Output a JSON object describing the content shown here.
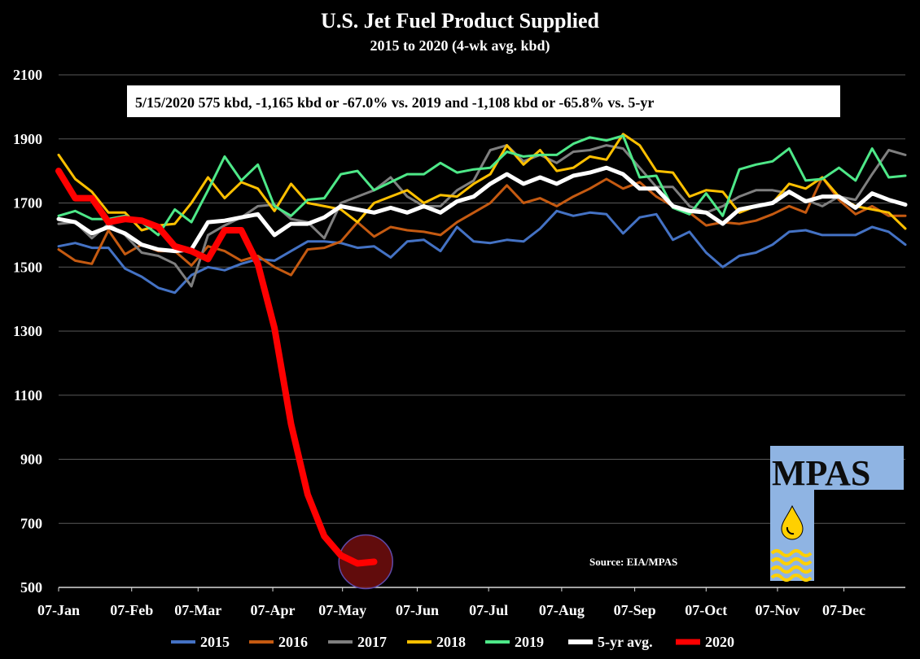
{
  "chart_data": {
    "type": "line",
    "title": "U.S. Jet Fuel Product Supplied",
    "subtitle": "2015 to 2020 (4-wk avg. kbd)",
    "annotation": "5/15/2020 575 kbd, -1,165 kbd or -67.0% vs. 2019 and -1,108 kbd or -65.8% vs. 5-yr",
    "source": "Source: EIA/MPAS",
    "logo_text": "MPAS",
    "ylim": [
      500,
      2100
    ],
    "yticks": [
      500,
      700,
      900,
      1100,
      1300,
      1500,
      1700,
      1900,
      2100
    ],
    "xlim": [
      0,
      51
    ],
    "xtick_labels": [
      "07-Jan",
      "07-Feb",
      "07-Mar",
      "07-Apr",
      "07-May",
      "07-Jun",
      "07-Jul",
      "07-Aug",
      "07-Sep",
      "07-Oct",
      "07-Nov",
      "07-Dec"
    ],
    "xtick_weeks": [
      0,
      4.4,
      8.4,
      12.9,
      17.1,
      21.6,
      25.9,
      30.3,
      34.7,
      39.0,
      43.3,
      47.3
    ],
    "grid": true,
    "legend_placement": "bottom",
    "series": [
      {
        "name": "2015",
        "color": "#4472c4",
        "width": 3,
        "values": [
          1565,
          1575,
          1560,
          1560,
          1495,
          1470,
          1435,
          1420,
          1475,
          1500,
          1490,
          1510,
          1525,
          1520,
          1550,
          1580,
          1580,
          1575,
          1560,
          1565,
          1530,
          1580,
          1585,
          1550,
          1625,
          1580,
          1575,
          1585,
          1580,
          1620,
          1675,
          1660,
          1670,
          1665,
          1605,
          1655,
          1665,
          1585,
          1610,
          1545,
          1500,
          1535,
          1545,
          1570,
          1610,
          1615,
          1600,
          1600,
          1600,
          1625,
          1610,
          1570
        ]
      },
      {
        "name": "2016",
        "color": "#c55a11",
        "width": 3,
        "values": [
          1555,
          1520,
          1510,
          1615,
          1540,
          1570,
          1550,
          1550,
          1505,
          1565,
          1550,
          1520,
          1535,
          1500,
          1475,
          1555,
          1560,
          1580,
          1640,
          1595,
          1625,
          1615,
          1610,
          1600,
          1640,
          1670,
          1700,
          1755,
          1700,
          1715,
          1690,
          1720,
          1745,
          1775,
          1745,
          1765,
          1720,
          1690,
          1670,
          1630,
          1640,
          1635,
          1645,
          1665,
          1690,
          1670,
          1780,
          1710,
          1665,
          1690,
          1660,
          1660
        ]
      },
      {
        "name": "2017",
        "color": "#7f7f7f",
        "width": 3,
        "values": [
          1635,
          1640,
          1590,
          1635,
          1600,
          1545,
          1535,
          1510,
          1440,
          1600,
          1630,
          1655,
          1690,
          1695,
          1650,
          1640,
          1590,
          1700,
          1720,
          1740,
          1780,
          1720,
          1690,
          1690,
          1740,
          1770,
          1865,
          1880,
          1830,
          1850,
          1825,
          1860,
          1865,
          1880,
          1870,
          1810,
          1750,
          1750,
          1690,
          1670,
          1690,
          1720,
          1740,
          1740,
          1730,
          1710,
          1690,
          1720,
          1710,
          1790,
          1865,
          1850
        ]
      },
      {
        "name": "2018",
        "color": "#ffc000",
        "width": 3,
        "values": [
          1850,
          1775,
          1735,
          1670,
          1670,
          1615,
          1630,
          1635,
          1700,
          1780,
          1715,
          1765,
          1745,
          1675,
          1760,
          1700,
          1690,
          1680,
          1640,
          1700,
          1720,
          1740,
          1700,
          1725,
          1720,
          1760,
          1790,
          1880,
          1820,
          1865,
          1800,
          1810,
          1845,
          1835,
          1915,
          1880,
          1800,
          1795,
          1720,
          1740,
          1735,
          1670,
          1690,
          1700,
          1760,
          1745,
          1780,
          1720,
          1690,
          1680,
          1670,
          1620
        ]
      },
      {
        "name": "2019",
        "color": "#4ee888",
        "width": 3,
        "values": [
          1660,
          1675,
          1650,
          1650,
          1660,
          1640,
          1600,
          1680,
          1640,
          1740,
          1845,
          1770,
          1820,
          1690,
          1660,
          1710,
          1715,
          1790,
          1800,
          1740,
          1765,
          1790,
          1790,
          1825,
          1795,
          1805,
          1810,
          1860,
          1845,
          1850,
          1850,
          1885,
          1905,
          1895,
          1910,
          1780,
          1785,
          1685,
          1665,
          1730,
          1660,
          1805,
          1820,
          1830,
          1870,
          1770,
          1775,
          1810,
          1770,
          1870,
          1780,
          1785
        ]
      },
      {
        "name": "5-yr avg.",
        "color": "#ffffff",
        "width": 5,
        "values": [
          1650,
          1640,
          1605,
          1625,
          1605,
          1570,
          1555,
          1550,
          1555,
          1640,
          1645,
          1655,
          1665,
          1600,
          1635,
          1635,
          1655,
          1690,
          1680,
          1670,
          1685,
          1670,
          1690,
          1670,
          1705,
          1720,
          1760,
          1790,
          1760,
          1780,
          1760,
          1785,
          1795,
          1810,
          1790,
          1745,
          1745,
          1690,
          1675,
          1670,
          1635,
          1680,
          1690,
          1700,
          1735,
          1705,
          1720,
          1720,
          1685,
          1730,
          1710,
          1695
        ]
      },
      {
        "name": "2020",
        "color": "#ff0000",
        "width": 8,
        "values": [
          1800,
          1715,
          1715,
          1640,
          1650,
          1645,
          1625,
          1565,
          1550,
          1525,
          1615,
          1615,
          1510,
          1310,
          1010,
          790,
          660,
          600,
          575,
          580
        ]
      }
    ]
  }
}
